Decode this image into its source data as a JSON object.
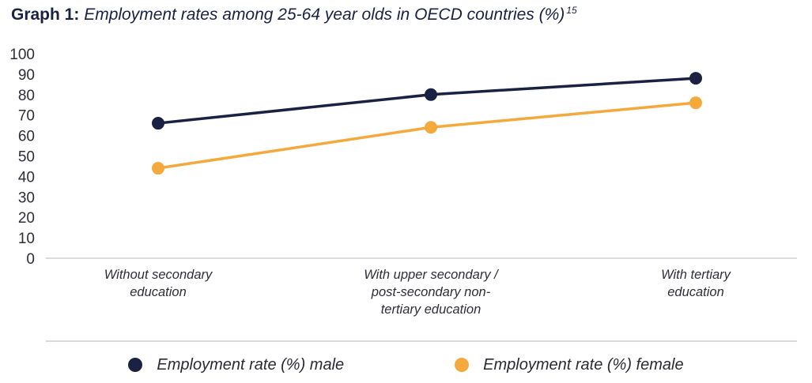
{
  "title": {
    "prefix": "Graph 1:",
    "text": " Employment rates among 25-64 year olds in OECD countries (%)",
    "superscript": "15"
  },
  "chart_data": {
    "type": "line",
    "title": "Employment rates among 25-64 year olds in OECD countries (%)",
    "categories": [
      "Without secondary education",
      "With upper secondary / post-secondary non-tertiary education",
      "With tertiary education"
    ],
    "category_label_lines": [
      [
        "Without secondary",
        "education"
      ],
      [
        "With upper secondary /",
        "post-secondary non-",
        "tertiary education"
      ],
      [
        "With tertiary",
        "education"
      ]
    ],
    "series": [
      {
        "name": "Employment rate (%) male",
        "values": [
          66,
          80,
          88
        ],
        "color": "#1b2143"
      },
      {
        "name": "Employment rate (%) female",
        "values": [
          44,
          64,
          76
        ],
        "color": "#f4a93d"
      }
    ],
    "xlabel": "",
    "ylabel": "",
    "ylim": [
      0,
      100
    ],
    "yticks": [
      0,
      10,
      20,
      30,
      40,
      50,
      60,
      70,
      80,
      90,
      100
    ],
    "grid": "baseline-only",
    "legend_position": "bottom"
  },
  "colors": {
    "male_series": "#1b2143",
    "female_series": "#f4a93d",
    "axis_line": "#cfcfcf",
    "tick_text": "#2e2e38",
    "title_text": "#1b2143"
  }
}
